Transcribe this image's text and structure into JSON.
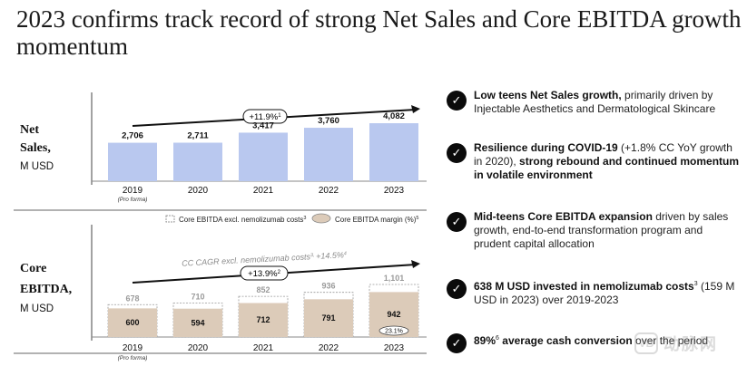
{
  "title": "2023 confirms track record of strong Net Sales and Core EBITDA growth momentum",
  "net_sales": {
    "label_line1": "Net",
    "label_line2": "Sales,",
    "unit": "M USD",
    "cagr": "+11.9%",
    "cagr_footnote": "1"
  },
  "core_ebitda": {
    "label_line1": "Core",
    "label_line2": "EBITDA,",
    "unit": "M USD",
    "cagr": "+13.9%",
    "cagr_footnote": "2",
    "cc_cagr": "CC CAGR excl. nemolizumab costs",
    "cc_cagr_footnote": "3, ",
    "cc_cagr_value": "+14.5%",
    "cc_cagr_value_footnote": "4",
    "legend_costs": "Core EBITDA excl. nemolizumab costs",
    "legend_costs_footnote": "3",
    "legend_margin": "Core EBITDA margin (%)",
    "legend_margin_footnote": "5"
  },
  "years": [
    "2019",
    "2020",
    "2021",
    "2022",
    "2023"
  ],
  "pro_forma": "(Pro forma)",
  "chart_data": [
    {
      "type": "bar",
      "name": "Net Sales",
      "categories": [
        "2019",
        "2020",
        "2021",
        "2022",
        "2023"
      ],
      "values": [
        2706,
        2711,
        3417,
        3760,
        4082
      ],
      "value_labels": [
        "2,706",
        "2,711",
        "3,417",
        "3,760",
        "4,082"
      ],
      "ylim": [
        0,
        4500
      ],
      "color": "#b9c8ef"
    },
    {
      "type": "bar",
      "name": "Core EBITDA",
      "categories": [
        "2019",
        "2020",
        "2021",
        "2022",
        "2023"
      ],
      "series": [
        {
          "name": "Core EBITDA",
          "values": [
            600,
            594,
            712,
            791,
            942
          ],
          "labels": [
            "600",
            "594",
            "712",
            "791",
            "942"
          ]
        },
        {
          "name": "Core EBITDA excl. nemolizumab costs",
          "values": [
            678,
            710,
            852,
            936,
            1101
          ],
          "labels": [
            "678",
            "710",
            "852",
            "936",
            "1,101"
          ]
        }
      ],
      "margin_labels": [
        "",
        "",
        "",
        "",
        "23.1%"
      ],
      "ylim": [
        0,
        1200
      ],
      "color": "#dccbb9"
    }
  ],
  "bullets": [
    {
      "bold": "Low teens Net Sales growth,",
      "text": " primarily driven by Injectable Aesthetics and Dermatological Skincare",
      "tail_bold": "",
      "footnote": "",
      "tail": ""
    },
    {
      "bold": "Resilience during COVID-19",
      "text": " (+1.8% CC YoY growth in 2020),",
      "tail_bold": " strong rebound and continued momentum in volatile environment",
      "footnote": "",
      "tail": ""
    },
    {
      "bold": "Mid-teens Core EBITDA expansion",
      "text": " driven by sales growth, end-to-end transformation program and prudent capital allocation",
      "tail_bold": "",
      "footnote": "",
      "tail": ""
    },
    {
      "bold": "638 M USD invested in nemolizumab costs",
      "footnote": "3",
      "text": " (159 M USD in 2023) over 2019-2023",
      "tail_bold": "",
      "tail": ""
    },
    {
      "bold": "89%",
      "footnote": "6",
      "text": "",
      "tail_bold": " average cash conversion",
      "tail": " over the period"
    }
  ],
  "watermark": "动脉网"
}
